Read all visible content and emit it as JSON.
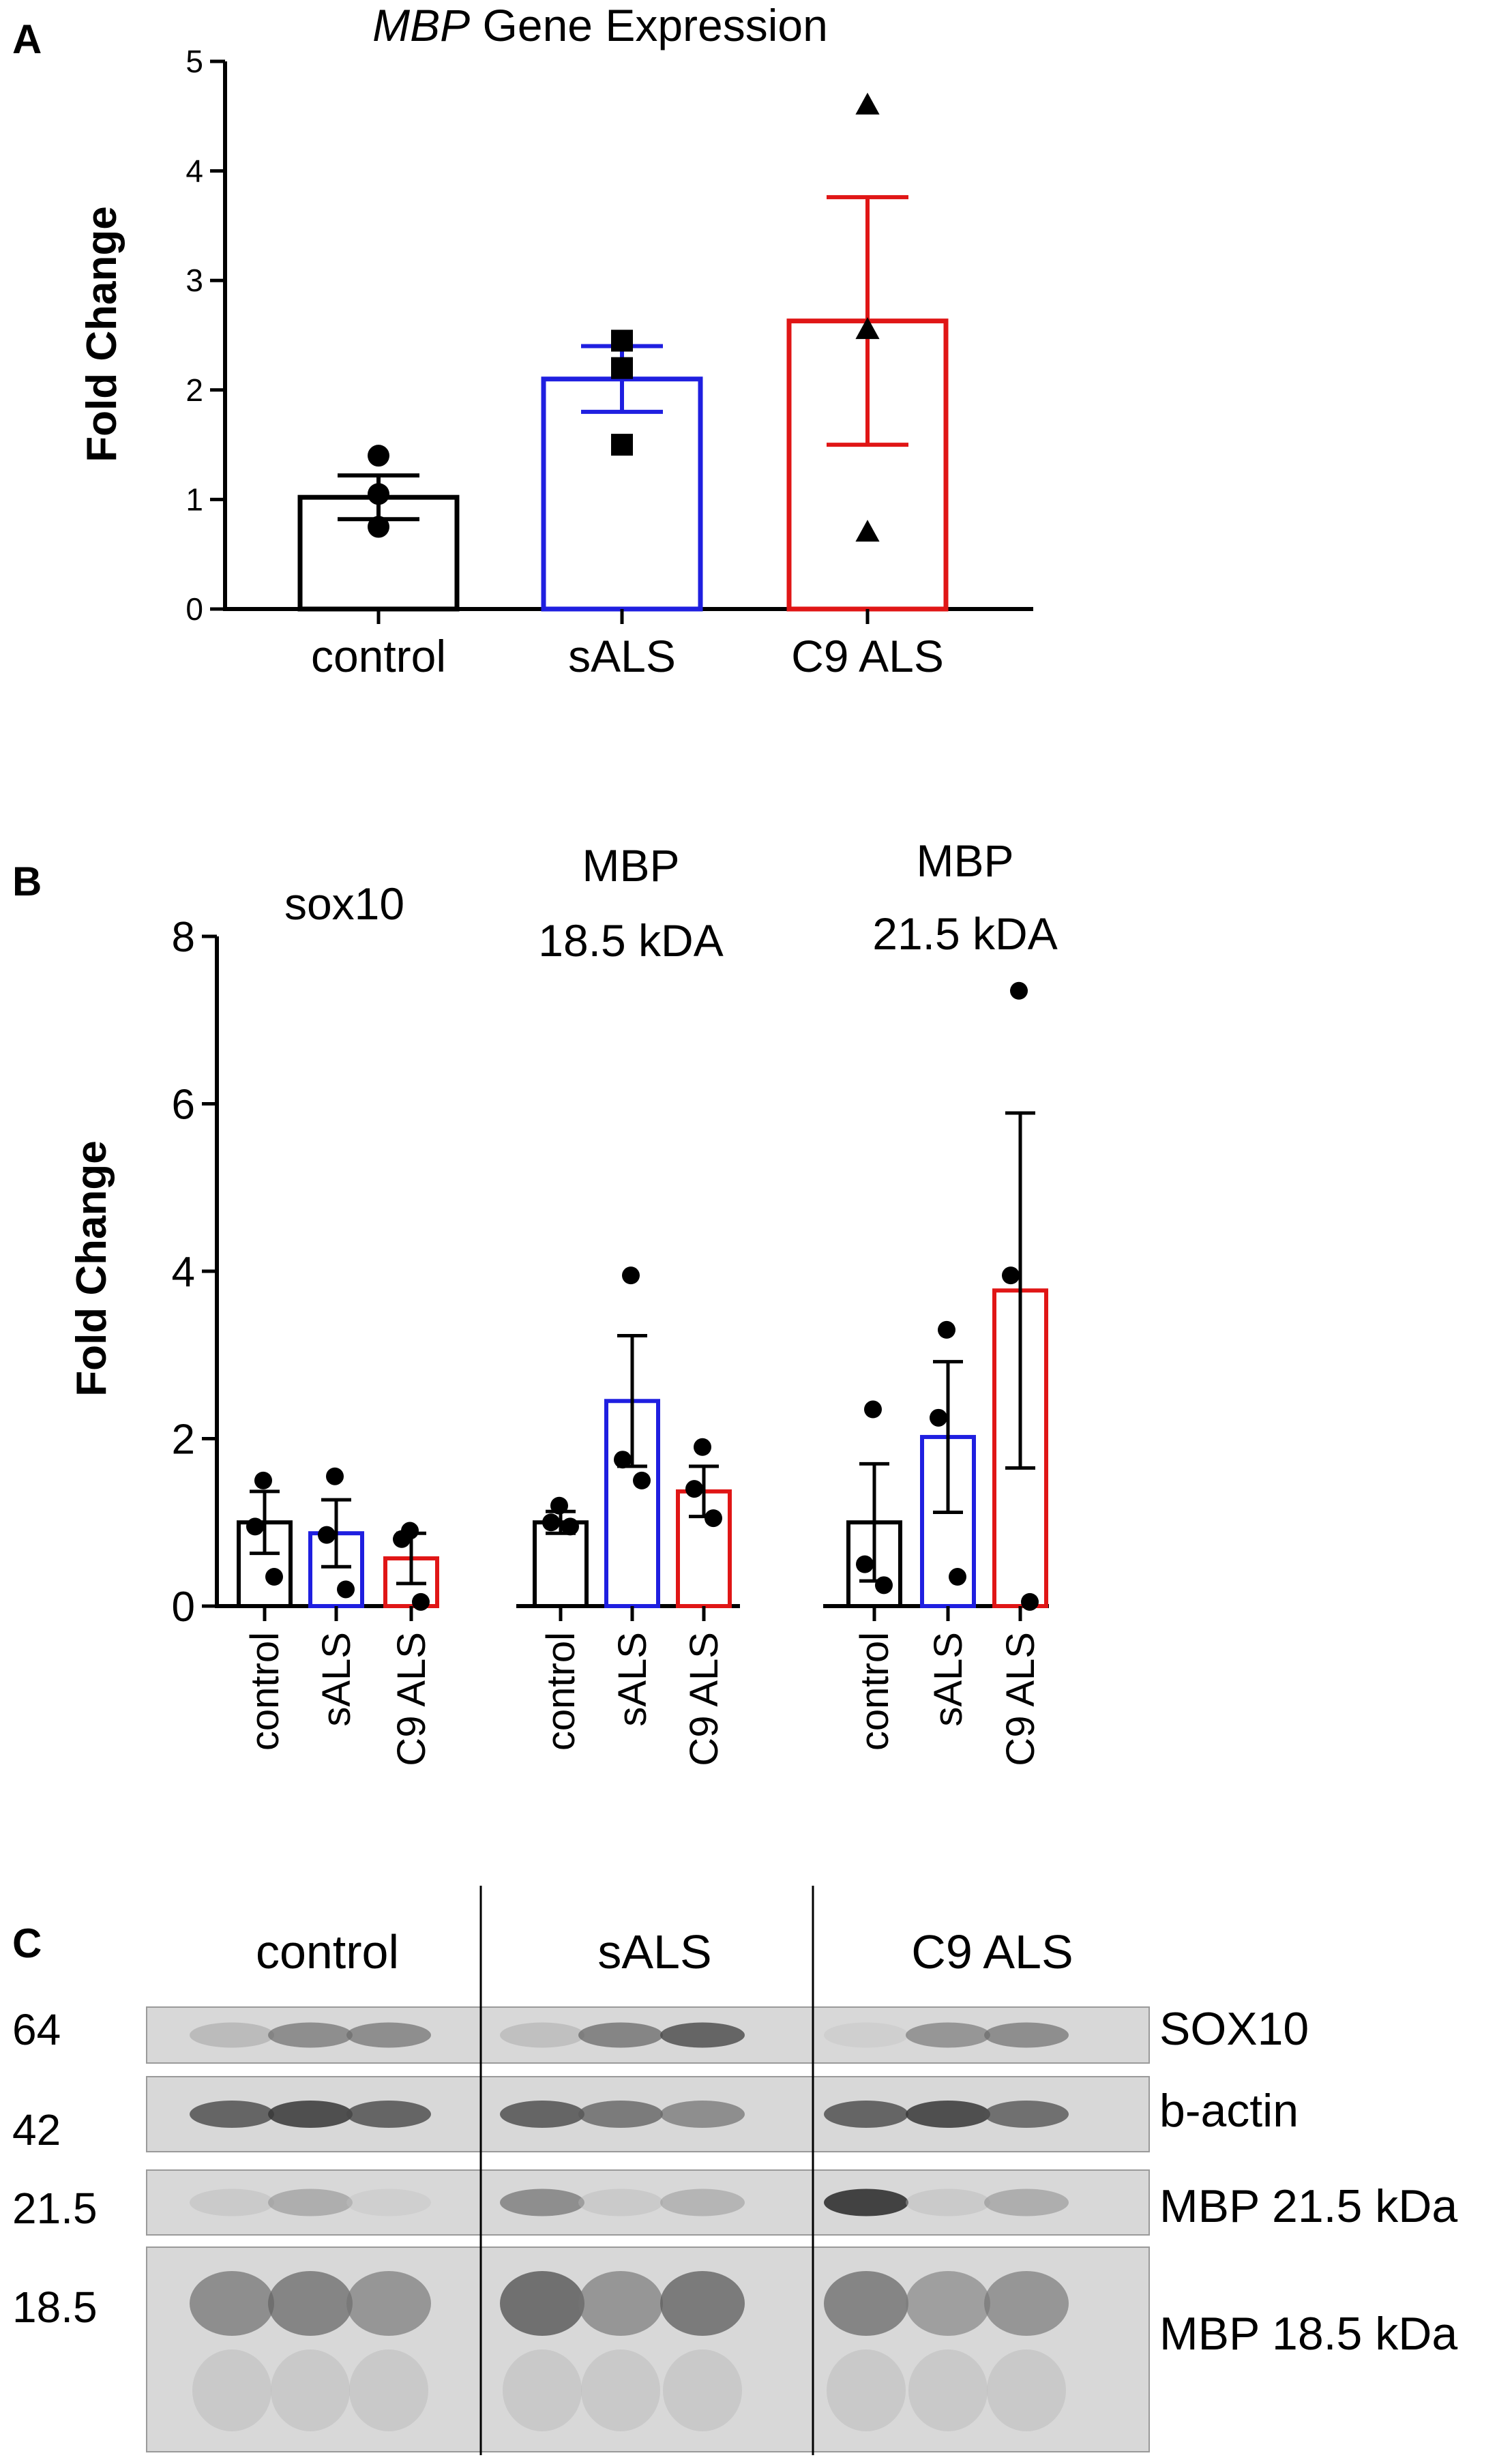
{
  "colors": {
    "control": "#000000",
    "sALS": "#1f1fe0",
    "C9 ALS": "#e01616",
    "blot_bg": "#d8d8d8"
  },
  "panel_a": {
    "label": "A",
    "title_italic": "MBP",
    "title_rest": " Gene Expression"
  },
  "panel_b": {
    "label": "B"
  },
  "panel_c": {
    "label": "C"
  },
  "chart_data": [
    {
      "type": "bar",
      "panel": "A",
      "title": "MBP Gene Expression",
      "xlabel": "",
      "ylabel": "Fold Change",
      "ylim": [
        0,
        5
      ],
      "yticks": [
        0,
        1,
        2,
        3,
        4,
        5
      ],
      "categories": [
        "control",
        "sALS",
        "C9 ALS"
      ],
      "values": [
        1.02,
        2.1,
        2.63
      ],
      "sem": [
        0.2,
        0.3,
        1.13
      ],
      "markers": [
        "circle",
        "square",
        "triangle"
      ],
      "points": [
        [
          1.4,
          1.05,
          0.75
        ],
        [
          2.45,
          2.2,
          1.5
        ],
        [
          4.6,
          2.55,
          0.7
        ]
      ],
      "grid": false,
      "legend": "none"
    },
    {
      "type": "bar",
      "panel": "B",
      "xlabel": "",
      "ylabel": "Fold Change",
      "ylim": [
        0,
        8
      ],
      "yticks": [
        0,
        2,
        4,
        6,
        8
      ],
      "grid": false,
      "legend": "none",
      "groups": [
        {
          "title": [
            "sox10"
          ],
          "categories": [
            "control",
            "sALS",
            "C9 ALS"
          ],
          "values": [
            1.0,
            0.87,
            0.57
          ],
          "sem": [
            0.37,
            0.4,
            0.3
          ],
          "points": [
            [
              1.5,
              0.95,
              0.35
            ],
            [
              1.55,
              0.85,
              0.2
            ],
            [
              0.9,
              0.8,
              0.05
            ]
          ]
        },
        {
          "title": [
            "MBP",
            "18.5 kDA"
          ],
          "categories": [
            "control",
            "sALS",
            "C9 ALS"
          ],
          "values": [
            1.0,
            2.45,
            1.37
          ],
          "sem": [
            0.13,
            0.78,
            0.3
          ],
          "points": [
            [
              1.2,
              1.0,
              0.95
            ],
            [
              3.95,
              1.75,
              1.5
            ],
            [
              1.9,
              1.4,
              1.05
            ]
          ]
        },
        {
          "title": [
            "MBP",
            "21.5 kDA"
          ],
          "categories": [
            "control",
            "sALS",
            "C9 ALS"
          ],
          "values": [
            1.0,
            2.02,
            3.77
          ],
          "sem": [
            0.7,
            0.9,
            2.12
          ],
          "points": [
            [
              2.35,
              0.5,
              0.25
            ],
            [
              3.3,
              2.25,
              0.35
            ],
            [
              7.35,
              3.95,
              0.05
            ]
          ]
        }
      ]
    }
  ],
  "blot": {
    "group_labels": [
      "control",
      "sALS",
      "C9 ALS"
    ],
    "mw_markers": [
      "64",
      "42",
      "21.5",
      "18.5"
    ],
    "strip_labels": [
      "SOX10",
      "b-actin",
      "MBP 21.5 kDa",
      "MBP 18.5 kDa"
    ],
    "band_intensity": [
      [
        0.25,
        0.55,
        0.55,
        0.2,
        0.6,
        0.75,
        0.05,
        0.5,
        0.55
      ],
      [
        0.75,
        0.85,
        0.75,
        0.75,
        0.65,
        0.55,
        0.75,
        0.85,
        0.7
      ],
      [
        0.1,
        0.35,
        0.05,
        0.55,
        0.1,
        0.3,
        0.9,
        0.1,
        0.35
      ],
      [
        0.55,
        0.6,
        0.5,
        0.7,
        0.5,
        0.65,
        0.6,
        0.45,
        0.5
      ]
    ]
  }
}
